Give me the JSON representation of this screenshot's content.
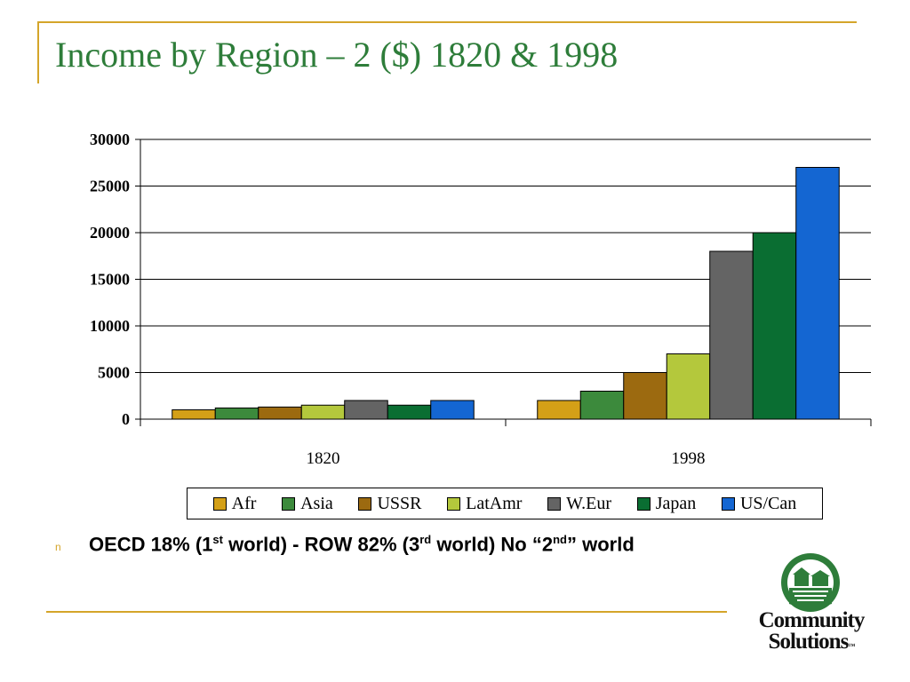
{
  "slide": {
    "title": "Income by Region – 2 ($) 1820 & 1998",
    "bullet": {
      "glyph": "n",
      "text_parts": [
        "OECD 18% (1",
        "st",
        " world) - ROW 82% (3",
        "rd",
        " world) No “2",
        "nd",
        "” world"
      ]
    },
    "logo": {
      "line1": "Community",
      "line2": "Solutions",
      "mark": "™"
    }
  },
  "chart_data": {
    "type": "bar",
    "title": "",
    "xlabel": "",
    "ylabel": "",
    "categories": [
      "1820",
      "1998"
    ],
    "ylim": [
      0,
      30000
    ],
    "yticks": [
      "0",
      "5000",
      "10000",
      "15000",
      "20000",
      "25000",
      "30000"
    ],
    "grid": true,
    "legend_position": "bottom",
    "series": [
      {
        "name": "Afr",
        "color": "#d4a017",
        "values": [
          1000,
          2000
        ]
      },
      {
        "name": "Asia",
        "color": "#3c8a3c",
        "values": [
          1200,
          3000
        ]
      },
      {
        "name": "USSR",
        "color": "#9c6a10",
        "values": [
          1300,
          5000
        ]
      },
      {
        "name": "LatAmr",
        "color": "#b4c83c",
        "values": [
          1500,
          7000
        ]
      },
      {
        "name": "W.Eur",
        "color": "#646464",
        "values": [
          2000,
          18000
        ]
      },
      {
        "name": "Japan",
        "color": "#0a6e32",
        "values": [
          1500,
          20000
        ]
      },
      {
        "name": "US/Can",
        "color": "#1466d2",
        "values": [
          2000,
          27000
        ]
      }
    ]
  }
}
